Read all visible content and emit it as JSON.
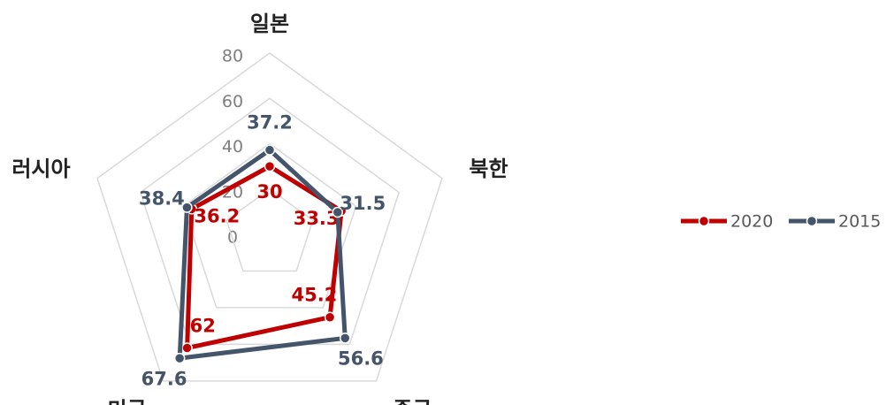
{
  "chart_data": {
    "type": "radar",
    "categories": [
      "일본",
      "북한",
      "중국",
      "미국",
      "러시아"
    ],
    "series": [
      {
        "name": "2020",
        "color": "#c00000",
        "values": [
          30,
          33.3,
          45.2,
          62,
          36.2
        ]
      },
      {
        "name": "2015",
        "color": "#44546a",
        "values": [
          37.2,
          31.5,
          56.6,
          67.6,
          38.4
        ]
      }
    ],
    "ylim": [
      0,
      80
    ],
    "yticks": [
      0,
      20,
      40,
      60,
      80
    ],
    "grid": true,
    "legend": "right"
  }
}
